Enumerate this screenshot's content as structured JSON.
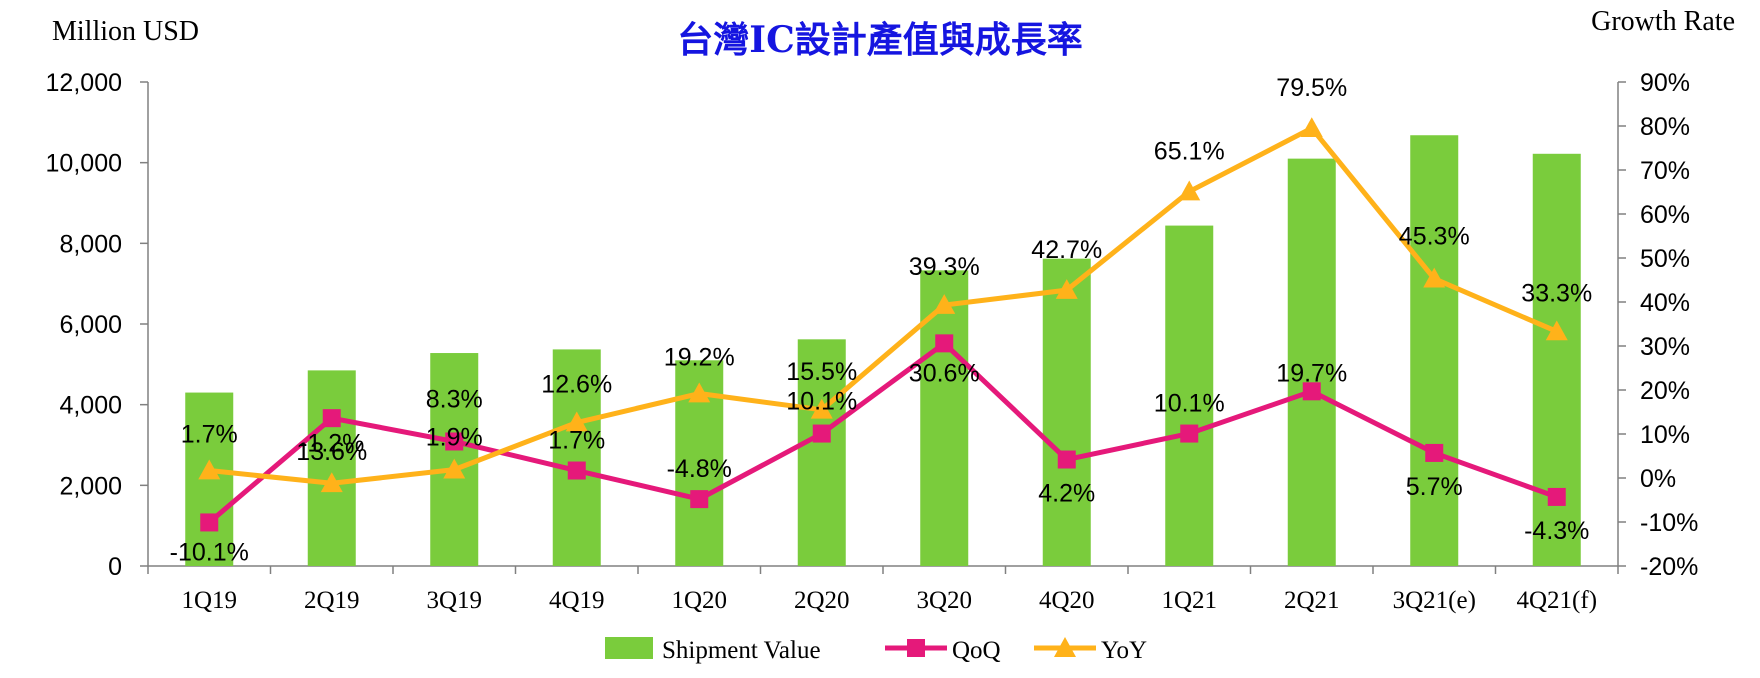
{
  "chart_data": {
    "type": "bar",
    "title": "台灣IC設計產值與成長率",
    "left_axis_label": "Million USD",
    "right_axis_label": "Growth Rate",
    "categories": [
      "1Q19",
      "2Q19",
      "3Q19",
      "4Q19",
      "1Q20",
      "2Q20",
      "3Q20",
      "4Q20",
      "1Q21",
      "2Q21",
      "3Q21(e)",
      "4Q21(f)"
    ],
    "ylim_left": [
      0,
      12000
    ],
    "yticks_left": [
      "0",
      "2,000",
      "4,000",
      "6,000",
      "8,000",
      "10,000",
      "12,000"
    ],
    "ylim_right": [
      -20,
      90
    ],
    "yticks_right": [
      "-20%",
      "-10%",
      "0%",
      "10%",
      "20%",
      "30%",
      "40%",
      "50%",
      "60%",
      "70%",
      "80%",
      "90%"
    ],
    "legend_position": "bottom",
    "series": [
      {
        "name": "Shipment Value",
        "type": "bar",
        "axis": "left",
        "color": "#7ACC3C",
        "values": [
          4300,
          4850,
          5280,
          5370,
          5100,
          5620,
          7330,
          7620,
          8440,
          10100,
          10680,
          10220
        ]
      },
      {
        "name": "QoQ",
        "type": "line",
        "axis": "right",
        "color": "#E5197A",
        "marker": "square",
        "values": [
          -10.1,
          13.6,
          8.3,
          1.7,
          -4.8,
          10.1,
          30.6,
          4.2,
          10.1,
          19.7,
          5.7,
          -4.3
        ],
        "labels": [
          "-10.1%",
          "13.6%",
          "8.3%",
          "1.7%",
          "-4.8%",
          "10.1%",
          "30.6%",
          "4.2%",
          "10.1%",
          "19.7%",
          "5.7%",
          "-4.3%"
        ]
      },
      {
        "name": "YoY",
        "type": "line",
        "axis": "right",
        "color": "#FFB21A",
        "marker": "triangle",
        "values": [
          1.7,
          -1.2,
          1.9,
          12.6,
          19.2,
          15.5,
          39.3,
          42.7,
          65.1,
          79.5,
          45.3,
          33.3
        ],
        "labels": [
          "1.7%",
          "-1.2%",
          "1.9%",
          "12.6%",
          "19.2%",
          "15.5%",
          "39.3%",
          "42.7%",
          "65.1%",
          "79.5%",
          "45.3%",
          "33.3%"
        ]
      }
    ]
  }
}
